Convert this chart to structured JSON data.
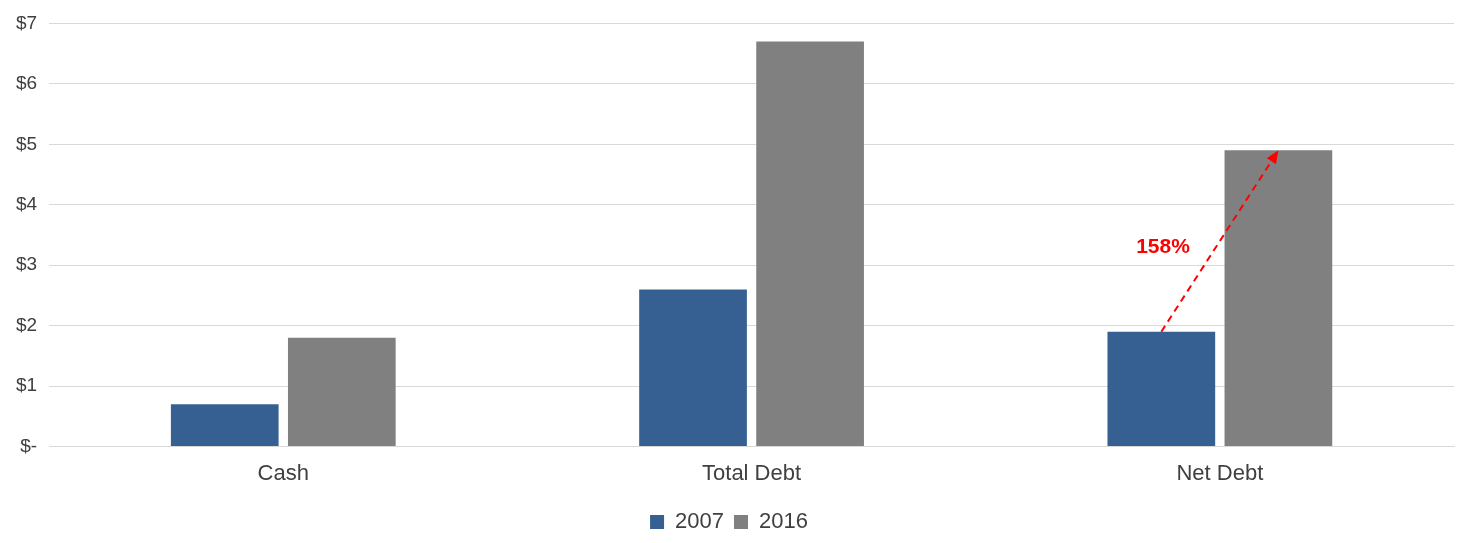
{
  "chart_data": {
    "type": "bar",
    "categories": [
      "Cash",
      "Total Debt",
      "Net Debt"
    ],
    "series": [
      {
        "name": "2007",
        "color": "#366092",
        "values": [
          0.7,
          2.6,
          1.9
        ]
      },
      {
        "name": "2016",
        "color": "#808080",
        "values": [
          1.8,
          6.7,
          4.9
        ]
      }
    ],
    "ylim": [
      0,
      7
    ],
    "yticks": [
      {
        "value": 0,
        "label": "$-"
      },
      {
        "value": 1,
        "label": "$1"
      },
      {
        "value": 2,
        "label": "$2"
      },
      {
        "value": 3,
        "label": "$3"
      },
      {
        "value": 4,
        "label": "$4"
      },
      {
        "value": 5,
        "label": "$5"
      },
      {
        "value": 6,
        "label": "$6"
      },
      {
        "value": 7,
        "label": "$7"
      }
    ],
    "grid": "y",
    "legend": "bottom",
    "annotations": [
      {
        "text": "158%",
        "x": "Net Debt",
        "y": 3.3
      }
    ]
  }
}
